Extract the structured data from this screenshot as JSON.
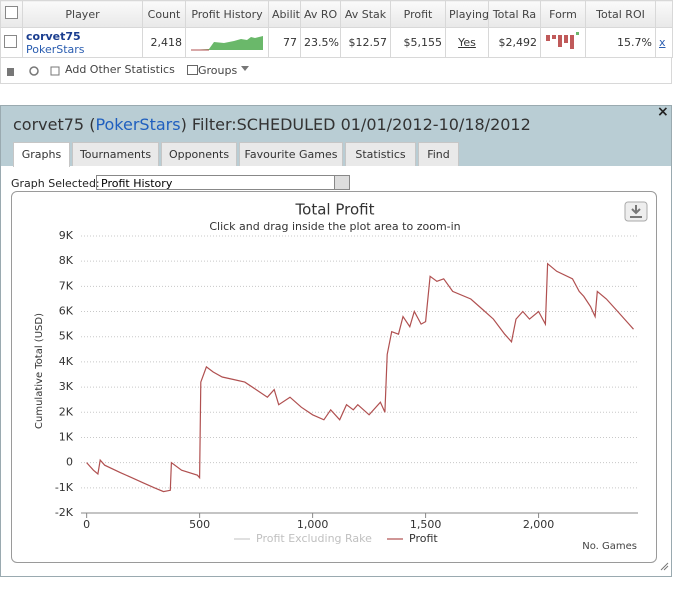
{
  "table": {
    "headers": [
      "Player",
      "Count",
      "Profit History",
      "Abilit",
      "Av RO",
      "Av Stak",
      "Profit",
      "Playing",
      "Total Ra",
      "Form",
      "Total ROI"
    ],
    "row": {
      "player": "corvet75",
      "site": "PokerStars",
      "count": "2,418",
      "ability": "77",
      "av_roi": "23.5%",
      "av_stake": "$12.57",
      "profit": "$5,155",
      "playing": "Yes",
      "total_rake": "$2,492",
      "total_roi": "15.7%",
      "remove": "x"
    }
  },
  "toolbar": {
    "add_stats": "Add Other Statistics",
    "groups": "Groups"
  },
  "dialog": {
    "title_prefix": "corvet75 (",
    "title_site": "PokerStars",
    "title_suffix": ") Filter:SCHEDULED 01/01/2012-10/18/2012",
    "close": "×",
    "tabs": [
      "Graphs",
      "Tournaments",
      "Opponents",
      "Favourite Games",
      "Statistics",
      "Find"
    ],
    "graph_selected_label": "Graph Selected:",
    "graph_selected": "Profit History"
  },
  "chart_data": {
    "type": "line",
    "title": "Total Profit",
    "subtitle": "Click and drag inside the plot area to zoom-in",
    "y_label": "Cumulative Total (USD)",
    "x_label": "No. Games",
    "xlim": [
      -25,
      2440
    ],
    "xticks": [
      0,
      500,
      {
        "value": 1000,
        "label": "1,000"
      },
      {
        "value": 1500,
        "label": "1,500"
      },
      {
        "value": 2000,
        "label": "2,000"
      }
    ],
    "ylim": [
      -2000,
      9000
    ],
    "yticks": [
      {
        "value": -2000,
        "label": "-2K"
      },
      {
        "value": -1000,
        "label": "-1K"
      },
      0,
      {
        "value": 1000,
        "label": "1K"
      },
      {
        "value": 2000,
        "label": "2K"
      },
      {
        "value": 3000,
        "label": "3K"
      },
      {
        "value": 4000,
        "label": "4K"
      },
      {
        "value": 5000,
        "label": "5K"
      },
      {
        "value": 6000,
        "label": "6K"
      },
      {
        "value": 7000,
        "label": "7K"
      },
      {
        "value": 8000,
        "label": "8K"
      },
      {
        "value": 9000,
        "label": "9K"
      }
    ],
    "grid": true,
    "x": [
      0,
      30,
      50,
      60,
      80,
      150,
      200,
      250,
      300,
      340,
      370,
      375,
      420,
      490,
      500,
      505,
      530,
      560,
      600,
      650,
      700,
      750,
      800,
      830,
      850,
      900,
      950,
      1000,
      1050,
      1080,
      1120,
      1150,
      1180,
      1200,
      1250,
      1300,
      1320,
      1330,
      1350,
      1380,
      1400,
      1430,
      1450,
      1480,
      1500,
      1520,
      1550,
      1580,
      1620,
      1700,
      1750,
      1800,
      1850,
      1880,
      1900,
      1930,
      1960,
      2000,
      2030,
      2040,
      2080,
      2150,
      2180,
      2200,
      2230,
      2250,
      2260,
      2300,
      2350,
      2400,
      2420
    ],
    "series": [
      {
        "name": "Profit Excluding Rake",
        "color": "#cccccc",
        "visible": false
      },
      {
        "name": "Profit",
        "color": "#b05050",
        "visible": true,
        "values": [
          0,
          -300,
          -450,
          100,
          -100,
          -400,
          -600,
          -800,
          -1000,
          -1150,
          -1100,
          0,
          -300,
          -500,
          -600,
          3200,
          3800,
          3600,
          3400,
          3300,
          3200,
          2900,
          2600,
          2900,
          2300,
          2600,
          2200,
          1900,
          1700,
          2100,
          1700,
          2300,
          2100,
          2300,
          1900,
          2400,
          2000,
          4300,
          5200,
          5100,
          5800,
          5400,
          6000,
          5500,
          5600,
          7400,
          7200,
          7300,
          6800,
          6500,
          6100,
          5700,
          5100,
          4800,
          5700,
          6000,
          5700,
          6000,
          5500,
          7900,
          7600,
          7300,
          6800,
          6600,
          6200,
          5800,
          6800,
          6500,
          6000,
          5500,
          5300
        ]
      }
    ]
  }
}
